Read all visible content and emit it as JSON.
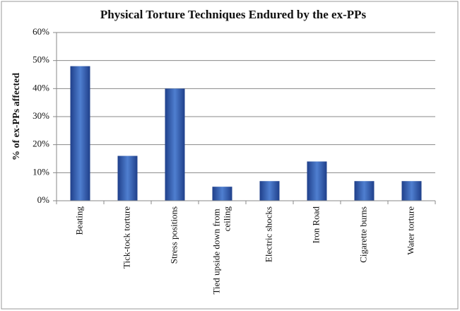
{
  "chart_data": {
    "type": "bar",
    "title": "Physical Torture Techniques Endured by the ex-PPs",
    "y_label": "% of ex-PPs affected",
    "categories": [
      "Beating",
      "Tick-tock torture",
      "Stress positions",
      "Tied upside down from ceiling",
      "Electric shocks",
      "Iron Road",
      "Cigarette burns",
      "Water torture"
    ],
    "values": [
      48,
      16,
      40,
      5,
      7,
      14,
      7,
      7
    ],
    "color": "#3461b4",
    "ylim": [
      0,
      60
    ],
    "yticks": [
      {
        "value": 0,
        "label": "0%"
      },
      {
        "value": 10,
        "label": "10%"
      },
      {
        "value": 20,
        "label": "20%"
      },
      {
        "value": 30,
        "label": "30%"
      },
      {
        "value": 40,
        "label": "40%"
      },
      {
        "value": 50,
        "label": "50%"
      },
      {
        "value": 60,
        "label": "60%"
      }
    ],
    "grid": true
  }
}
